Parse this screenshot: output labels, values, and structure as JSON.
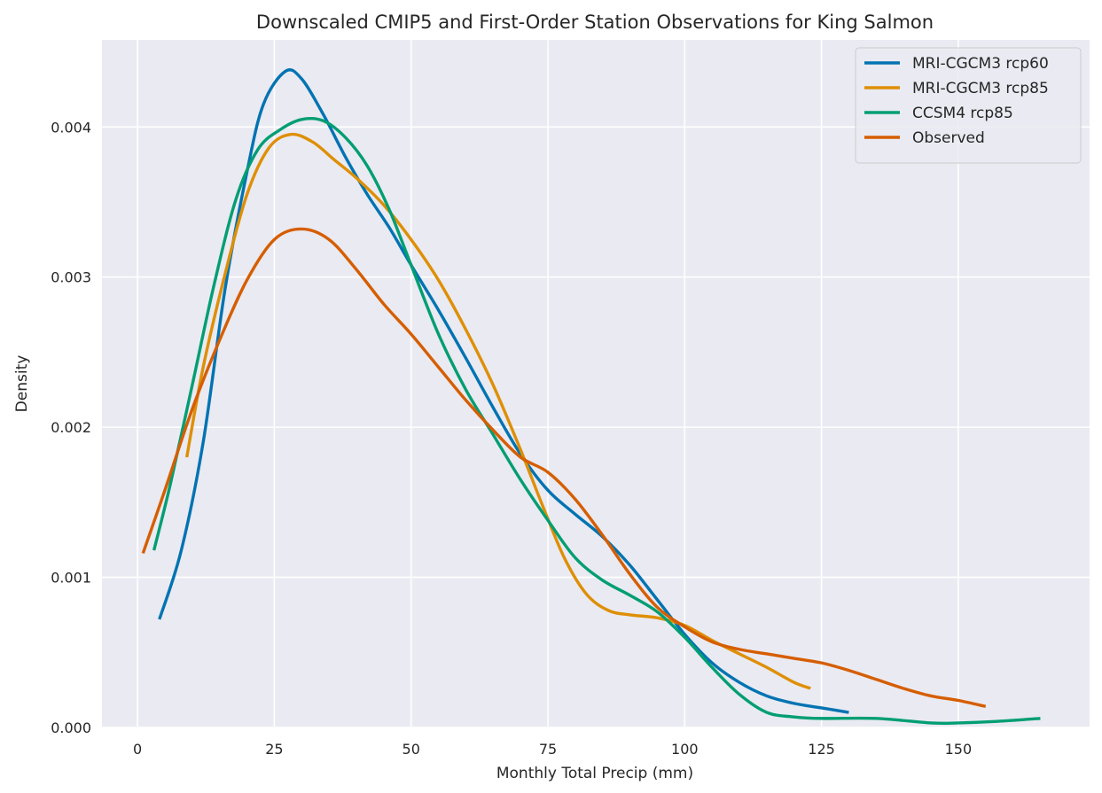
{
  "chart_data": {
    "type": "line",
    "title": "Downscaled CMIP5 and First-Order Station Observations for King Salmon",
    "xlabel": "Monthly Total Precip (mm)",
    "ylabel": "Density",
    "xlim": [
      -6.5,
      174
    ],
    "ylim": [
      0,
      0.00458
    ],
    "xticks": [
      0,
      25,
      50,
      75,
      100,
      125,
      150
    ],
    "xtick_labels": [
      "0",
      "25",
      "50",
      "75",
      "100",
      "125",
      "150"
    ],
    "yticks": [
      0,
      0.001,
      0.002,
      0.003,
      0.004
    ],
    "ytick_labels": [
      "0.000",
      "0.001",
      "0.002",
      "0.003",
      "0.004"
    ],
    "grid": true,
    "legend_position": "top-right",
    "background": "#eaeaf2",
    "series": [
      {
        "name": "MRI-CGCM3 rcp60",
        "color": "#0173b2",
        "points": [
          [
            4,
            0.00072
          ],
          [
            8,
            0.00118
          ],
          [
            12,
            0.0019
          ],
          [
            16,
            0.00292
          ],
          [
            20,
            0.0037
          ],
          [
            23,
            0.00415
          ],
          [
            27,
            0.00437
          ],
          [
            30,
            0.00432
          ],
          [
            34,
            0.00408
          ],
          [
            38,
            0.0038
          ],
          [
            42,
            0.00355
          ],
          [
            46,
            0.00333
          ],
          [
            50,
            0.00308
          ],
          [
            55,
            0.00278
          ],
          [
            60,
            0.00246
          ],
          [
            65,
            0.00213
          ],
          [
            70,
            0.00182
          ],
          [
            75,
            0.00158
          ],
          [
            80,
            0.00142
          ],
          [
            85,
            0.00127
          ],
          [
            90,
            0.00108
          ],
          [
            95,
            0.00085
          ],
          [
            100,
            0.00062
          ],
          [
            105,
            0.00043
          ],
          [
            110,
            0.0003
          ],
          [
            115,
            0.00021
          ],
          [
            120,
            0.00016
          ],
          [
            125,
            0.00013
          ],
          [
            130,
            0.0001
          ]
        ]
      },
      {
        "name": "MRI-CGCM3 rcp85",
        "color": "#de8f05",
        "points": [
          [
            9,
            0.0018
          ],
          [
            12,
            0.0024
          ],
          [
            16,
            0.00302
          ],
          [
            20,
            0.00355
          ],
          [
            24,
            0.00386
          ],
          [
            28,
            0.00395
          ],
          [
            32,
            0.0039
          ],
          [
            36,
            0.00378
          ],
          [
            40,
            0.00366
          ],
          [
            45,
            0.00348
          ],
          [
            50,
            0.00325
          ],
          [
            55,
            0.00298
          ],
          [
            60,
            0.00265
          ],
          [
            65,
            0.00228
          ],
          [
            70,
            0.00185
          ],
          [
            74,
            0.00148
          ],
          [
            78,
            0.00113
          ],
          [
            82,
            0.00089
          ],
          [
            86,
            0.00078
          ],
          [
            90,
            0.00075
          ],
          [
            95,
            0.00073
          ],
          [
            100,
            0.00068
          ],
          [
            105,
            0.00058
          ],
          [
            110,
            0.00049
          ],
          [
            115,
            0.0004
          ],
          [
            120,
            0.0003
          ],
          [
            123,
            0.00026
          ]
        ]
      },
      {
        "name": "CCSM4 rcp85",
        "color": "#029e73",
        "points": [
          [
            3,
            0.00118
          ],
          [
            6,
            0.00162
          ],
          [
            10,
            0.00228
          ],
          [
            14,
            0.00295
          ],
          [
            18,
            0.00352
          ],
          [
            22,
            0.00385
          ],
          [
            26,
            0.00398
          ],
          [
            30,
            0.00405
          ],
          [
            34,
            0.00404
          ],
          [
            38,
            0.00393
          ],
          [
            42,
            0.00374
          ],
          [
            46,
            0.00345
          ],
          [
            50,
            0.00308
          ],
          [
            55,
            0.00262
          ],
          [
            60,
            0.00225
          ],
          [
            65,
            0.00195
          ],
          [
            70,
            0.00165
          ],
          [
            75,
            0.00138
          ],
          [
            80,
            0.00113
          ],
          [
            85,
            0.00098
          ],
          [
            90,
            0.00088
          ],
          [
            95,
            0.00077
          ],
          [
            100,
            0.0006
          ],
          [
            105,
            0.0004
          ],
          [
            110,
            0.00022
          ],
          [
            115,
            0.0001
          ],
          [
            120,
            7e-05
          ],
          [
            125,
            6e-05
          ],
          [
            135,
            6e-05
          ],
          [
            145,
            3e-05
          ],
          [
            150,
            3e-05
          ],
          [
            157,
            4e-05
          ],
          [
            165,
            6e-05
          ]
        ]
      },
      {
        "name": "Observed",
        "color": "#d55e00",
        "points": [
          [
            1,
            0.00116
          ],
          [
            5,
            0.00158
          ],
          [
            10,
            0.00212
          ],
          [
            15,
            0.00258
          ],
          [
            20,
            0.00298
          ],
          [
            25,
            0.00325
          ],
          [
            30,
            0.00332
          ],
          [
            35,
            0.00325
          ],
          [
            40,
            0.00305
          ],
          [
            45,
            0.00282
          ],
          [
            50,
            0.00262
          ],
          [
            55,
            0.0024
          ],
          [
            60,
            0.00218
          ],
          [
            65,
            0.00198
          ],
          [
            70,
            0.0018
          ],
          [
            75,
            0.0017
          ],
          [
            80,
            0.00152
          ],
          [
            85,
            0.00128
          ],
          [
            90,
            0.00102
          ],
          [
            95,
            0.0008
          ],
          [
            100,
            0.00067
          ],
          [
            105,
            0.00057
          ],
          [
            110,
            0.00052
          ],
          [
            115,
            0.00049
          ],
          [
            120,
            0.00046
          ],
          [
            125,
            0.00043
          ],
          [
            130,
            0.00038
          ],
          [
            135,
            0.00032
          ],
          [
            140,
            0.00026
          ],
          [
            145,
            0.00021
          ],
          [
            150,
            0.00018
          ],
          [
            155,
            0.00014
          ]
        ]
      }
    ]
  }
}
